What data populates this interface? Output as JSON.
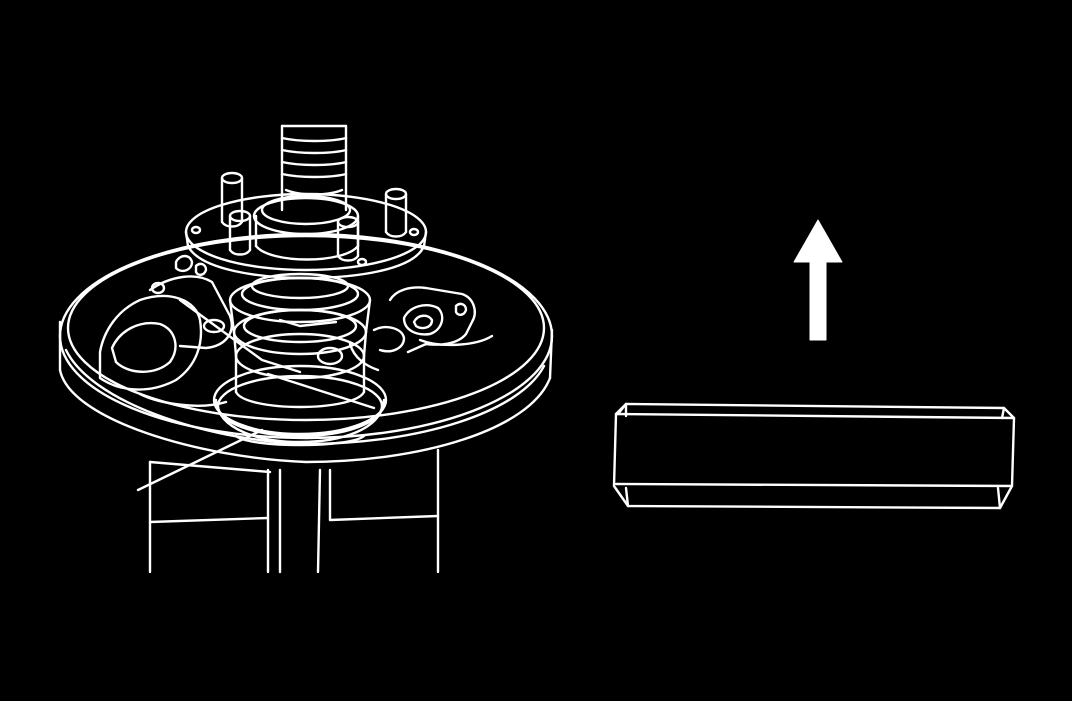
{
  "diagram": {
    "labels": [],
    "parts": [
      {
        "id": "axle-shaft-assembly",
        "kind": "hub-flange-with-wheel-studs-and-backing-plate"
      },
      {
        "id": "removal-direction",
        "kind": "arrow-up"
      },
      {
        "id": "removed-component",
        "kind": "block"
      }
    ],
    "colors": {
      "background": "#000000",
      "line": "#ffffff"
    }
  }
}
